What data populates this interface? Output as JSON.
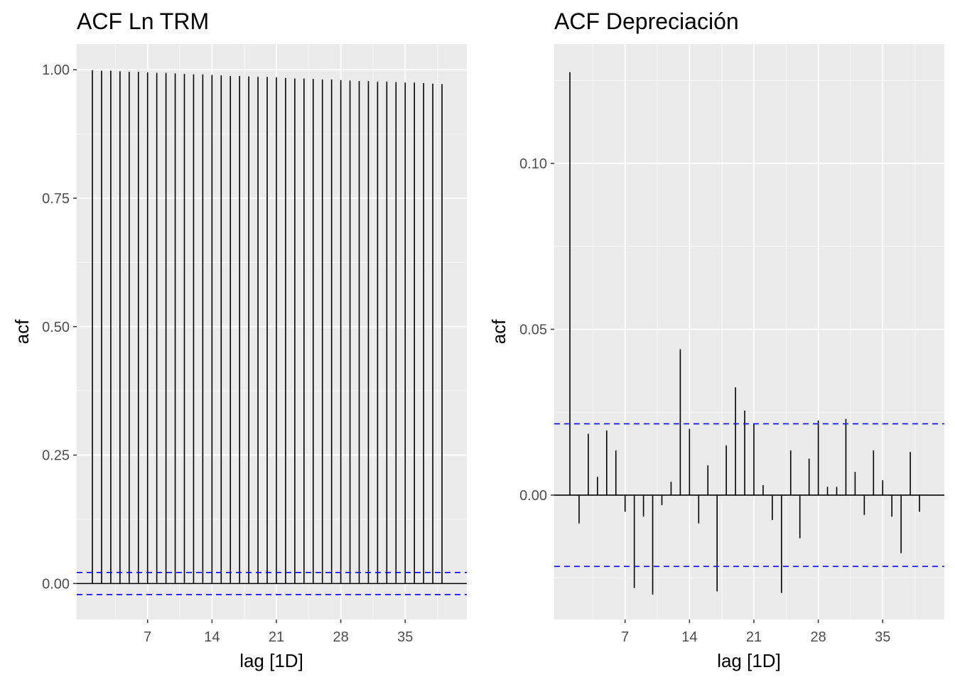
{
  "chart_data": [
    {
      "type": "bar",
      "title": "ACF Ln TRM",
      "xlabel": "lag [1D]",
      "ylabel": "acf",
      "xlim": [
        -0.7,
        41.7
      ],
      "ylim": [
        -0.07,
        1.05
      ],
      "x_ticks": [
        7,
        14,
        21,
        28,
        35
      ],
      "x_tick_labels": [
        "7",
        "14",
        "21",
        "28",
        "35"
      ],
      "y_ticks": [
        0,
        0.25,
        0.5,
        0.75,
        1.0
      ],
      "y_tick_labels": [
        "0.00",
        "0.25",
        "0.50",
        "0.75",
        "1.00"
      ],
      "lags": [
        1,
        2,
        3,
        4,
        5,
        6,
        7,
        8,
        9,
        10,
        11,
        12,
        13,
        14,
        15,
        16,
        17,
        18,
        19,
        20,
        21,
        22,
        23,
        24,
        25,
        26,
        27,
        28,
        29,
        30,
        31,
        32,
        33,
        34,
        35,
        36,
        37,
        38,
        39
      ],
      "values": [
        0.999,
        0.998,
        0.998,
        0.997,
        0.996,
        0.996,
        0.995,
        0.994,
        0.994,
        0.993,
        0.992,
        0.991,
        0.991,
        0.99,
        0.989,
        0.988,
        0.988,
        0.987,
        0.986,
        0.986,
        0.985,
        0.984,
        0.983,
        0.983,
        0.982,
        0.981,
        0.981,
        0.98,
        0.979,
        0.978,
        0.978,
        0.977,
        0.977,
        0.976,
        0.975,
        0.975,
        0.974,
        0.973,
        0.972
      ],
      "ci": 0.0215,
      "grid": true
    },
    {
      "type": "bar",
      "title": "ACF Depreciación",
      "xlabel": "lag [1D]",
      "ylabel": "acf",
      "xlim": [
        -0.7,
        41.7
      ],
      "ylim": [
        -0.0375,
        0.136
      ],
      "x_ticks": [
        7,
        14,
        21,
        28,
        35
      ],
      "x_tick_labels": [
        "7",
        "14",
        "21",
        "28",
        "35"
      ],
      "y_ticks": [
        0,
        0.05,
        0.1
      ],
      "y_tick_labels": [
        "0.00",
        "0.05",
        "0.10"
      ],
      "lags": [
        1,
        2,
        3,
        4,
        5,
        6,
        7,
        8,
        9,
        10,
        11,
        12,
        13,
        14,
        15,
        16,
        17,
        18,
        19,
        20,
        21,
        22,
        23,
        24,
        25,
        26,
        27,
        28,
        29,
        30,
        31,
        32,
        33,
        34,
        35,
        36,
        37,
        38,
        39
      ],
      "values": [
        0.1275,
        -0.0085,
        0.0185,
        0.0055,
        0.0195,
        0.0135,
        -0.005,
        -0.028,
        -0.0065,
        -0.03,
        -0.003,
        0.004,
        0.044,
        0.02,
        -0.0085,
        0.009,
        -0.029,
        0.015,
        0.0325,
        0.0255,
        0.0215,
        0.003,
        -0.0075,
        -0.0295,
        0.0135,
        -0.013,
        0.011,
        0.0225,
        0.0025,
        0.0025,
        0.023,
        0.007,
        -0.006,
        0.0135,
        0.0045,
        -0.0065,
        -0.0175,
        0.013,
        -0.005
      ],
      "ci": 0.0215,
      "grid": true
    }
  ]
}
